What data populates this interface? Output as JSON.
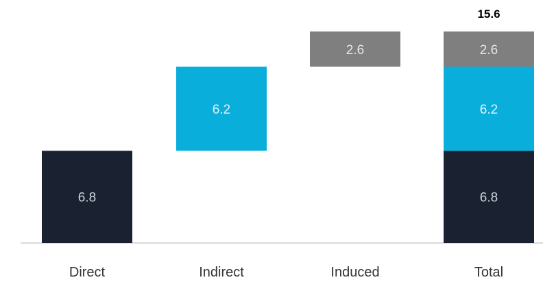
{
  "chart_data": {
    "type": "bar",
    "subtype": "waterfall-stacked",
    "title": "",
    "xlabel": "",
    "ylabel": "",
    "ylim": [
      0,
      15.6
    ],
    "grid": false,
    "legend": "none",
    "categories": [
      "Direct",
      "Indirect",
      "Induced",
      "Total"
    ],
    "series": [
      {
        "color": "#1a2232",
        "label_color": "#cfd3da",
        "values": [
          6.8,
          null,
          null,
          6.8
        ],
        "labels": [
          "6.8",
          "",
          "",
          "6.8"
        ]
      },
      {
        "color": "#0aaedb",
        "label_color": "#dff4fb",
        "values": [
          null,
          6.2,
          null,
          6.2
        ],
        "labels": [
          "",
          "6.2",
          "",
          "6.2"
        ]
      },
      {
        "color": "#7f7f7f",
        "label_color": "#e6e6e6",
        "values": [
          null,
          null,
          2.6,
          2.6
        ],
        "labels": [
          "",
          "",
          "2.6",
          "2.6"
        ]
      }
    ],
    "waterfall_offsets": [
      0,
      6.8,
      13.0,
      0
    ],
    "total": {
      "category": "Total",
      "value": 15.6,
      "label": "15.6"
    }
  }
}
